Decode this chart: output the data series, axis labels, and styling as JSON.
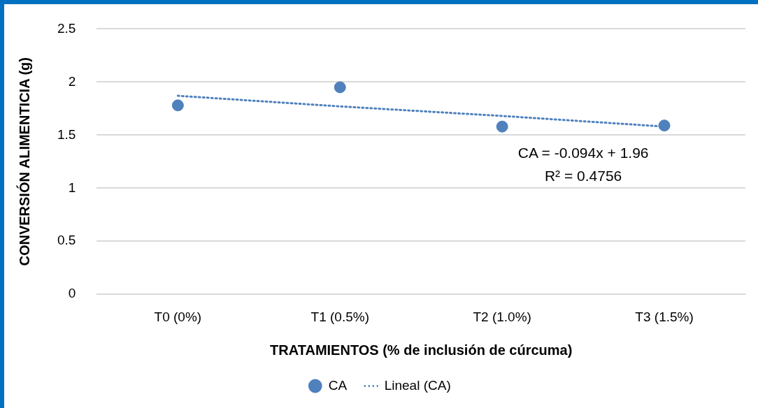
{
  "chart_data": {
    "type": "scatter",
    "xlabel": "TRATAMIENTOS (% de inclusión de cúrcuma)",
    "ylabel": "CONVERSIÓN ALIMENTICIA (g)",
    "categories": [
      "T0 (0%)",
      "T1 (0.5%)",
      "T2 (1.0%)",
      "T3 (1.5%)"
    ],
    "series": [
      {
        "name": "CA",
        "color": "#4f81bd",
        "marker": "circle",
        "values": [
          1.78,
          1.95,
          1.58,
          1.59
        ]
      },
      {
        "name": "Lineal (CA)",
        "type": "line",
        "color": "#4f81bd",
        "marker": "none",
        "line_style": "dotted",
        "values": [
          1.87,
          1.77,
          1.68,
          1.58
        ]
      }
    ],
    "ylim": [
      0,
      2.5
    ],
    "yticks": [
      0,
      0.5,
      1,
      1.5,
      2,
      2.5
    ],
    "grid": "y",
    "legend": "bottom",
    "annotations": [
      "CA = -0.094x + 1.96",
      "R² = 0.4756"
    ]
  }
}
